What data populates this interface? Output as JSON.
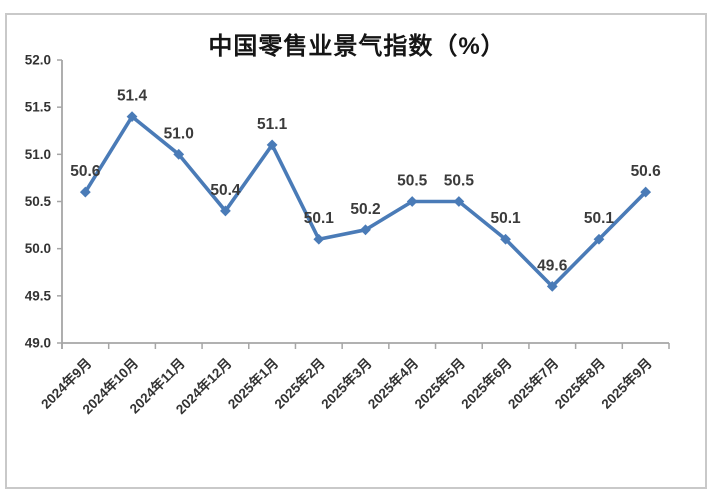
{
  "window": {
    "background": "#ffffff",
    "frame_border_color": "#c9c9c9"
  },
  "chart_data": {
    "type": "line",
    "title": "中国零售业景气指数（%）",
    "categories": [
      "2024年9月",
      "2024年10月",
      "2024年11月",
      "2024年12月",
      "2025年1月",
      "2025年2月",
      "2025年3月",
      "2025年4月",
      "2025年5月",
      "2025年6月",
      "2025年7月",
      "2025年8月",
      "2025年9月"
    ],
    "series": [
      {
        "name": "中国零售业景气指数",
        "values": [
          50.6,
          51.4,
          51.0,
          50.4,
          51.1,
          50.1,
          50.2,
          50.5,
          50.5,
          50.1,
          49.6,
          50.1,
          50.6
        ]
      }
    ],
    "data_labels": [
      "50.6",
      "51.4",
      "51.0",
      "50.4",
      "51.1",
      "50.1",
      "50.2",
      "50.5",
      "50.5",
      "50.1",
      "49.6",
      "50.1",
      "50.6"
    ],
    "xlabel": "",
    "ylabel": "",
    "ylim": [
      49.0,
      52.0
    ],
    "ytick_step": 0.5,
    "ytick_labels": [
      "52.0",
      "51.5",
      "51.0",
      "50.5",
      "50.0",
      "49.5",
      "49.0"
    ],
    "grid": false,
    "legend_position": "none",
    "line_color": "#4a7bb7",
    "marker": "diamond",
    "marker_color": "#4a7bb7",
    "axis_color": "#a6a6a6",
    "data_label_color": "#3b3b3b",
    "tick_label_color": "#333333"
  }
}
